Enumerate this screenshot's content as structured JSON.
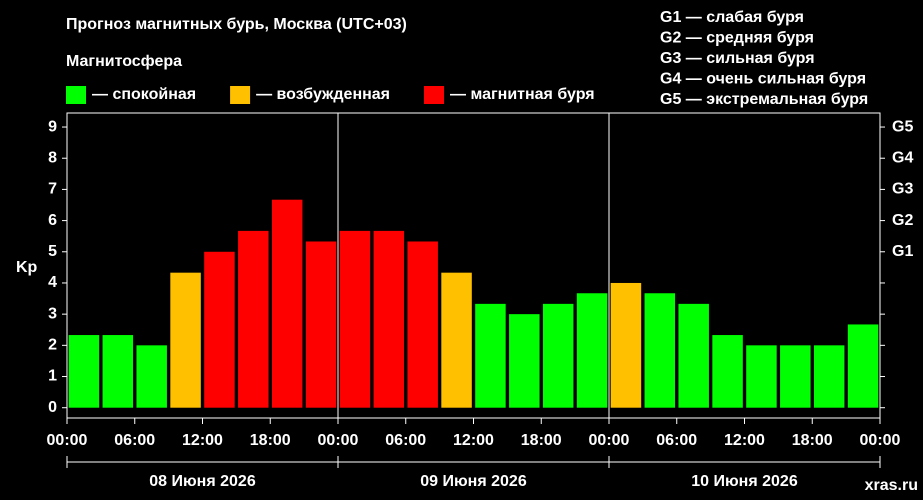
{
  "chart_data": {
    "type": "bar",
    "title": "Прогноз магнитных бурь, Москва (UTC+03)",
    "legend_title": "Магнитосфера",
    "legend": [
      {
        "label": "— спокойная",
        "color": "#00ff00"
      },
      {
        "label": "— возбужденная",
        "color": "#ffc000"
      },
      {
        "label": "— магнитная буря",
        "color": "#ff0000"
      }
    ],
    "scale_notes": [
      "G1 — слабая буря",
      "G2 — средняя буря",
      "G3 — сильная буря",
      "G4 — очень сильная буря",
      "G5 — экстремальная буря"
    ],
    "y_label": "Kp",
    "x": [
      1.5,
      4.5,
      7.5,
      10.5,
      13.5,
      16.5,
      19.5,
      22.5,
      25.5,
      28.5,
      31.5,
      34.5,
      37.5,
      40.5,
      43.5,
      46.5,
      49.5,
      52.5,
      55.5,
      58.5,
      61.5,
      64.5,
      67.5,
      70.5
    ],
    "values": [
      2.33,
      2.33,
      2.0,
      4.33,
      5.0,
      5.67,
      6.67,
      5.33,
      5.67,
      5.67,
      5.33,
      4.33,
      3.33,
      3.0,
      3.33,
      3.67,
      4.0,
      3.67,
      3.33,
      2.33,
      2.0,
      2.0,
      2.0,
      2.67
    ],
    "colors": [
      "#00ff00",
      "#00ff00",
      "#00ff00",
      "#ffc000",
      "#ff0000",
      "#ff0000",
      "#ff0000",
      "#ff0000",
      "#ff0000",
      "#ff0000",
      "#ff0000",
      "#ffc000",
      "#00ff00",
      "#00ff00",
      "#00ff00",
      "#00ff00",
      "#ffc000",
      "#00ff00",
      "#00ff00",
      "#00ff00",
      "#00ff00",
      "#00ff00",
      "#00ff00",
      "#00ff00"
    ],
    "xlim": [
      0,
      72
    ],
    "xticks": [
      {
        "value": 0,
        "label": "00:00"
      },
      {
        "value": 6,
        "label": "06:00"
      },
      {
        "value": 12,
        "label": "12:00"
      },
      {
        "value": 18,
        "label": "18:00"
      },
      {
        "value": 24,
        "label": "00:00"
      },
      {
        "value": 30,
        "label": "06:00"
      },
      {
        "value": 36,
        "label": "12:00"
      },
      {
        "value": 42,
        "label": "18:00"
      },
      {
        "value": 48,
        "label": "00:00"
      },
      {
        "value": 54,
        "label": "06:00"
      },
      {
        "value": 60,
        "label": "12:00"
      },
      {
        "value": 66,
        "label": "18:00"
      },
      {
        "value": 72,
        "label": "00:00"
      }
    ],
    "days": [
      {
        "label": "08 Июня 2026",
        "start": 0,
        "end": 24
      },
      {
        "label": "09 Июня 2026",
        "start": 24,
        "end": 48
      },
      {
        "label": "10 Июня 2026",
        "start": 48,
        "end": 72
      }
    ],
    "ylim": [
      -0.33,
      9.45
    ],
    "yticks": [
      0,
      1,
      2,
      3,
      4,
      5,
      6,
      7,
      8,
      9
    ],
    "y2lim": [
      -0.33,
      9.45
    ],
    "y2ticks": [
      {
        "value": 5,
        "label": "G1"
      },
      {
        "value": 6,
        "label": "G2"
      },
      {
        "value": 7,
        "label": "G3"
      },
      {
        "value": 8,
        "label": "G4"
      },
      {
        "value": 9,
        "label": "G5"
      }
    ],
    "watermark": "xras.ru"
  }
}
